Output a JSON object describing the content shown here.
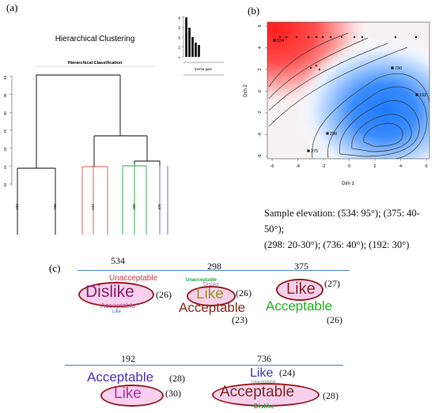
{
  "panel_a": {
    "label": "(a)",
    "title": "Hierarchical Clustering",
    "subtitle": "Hierarchical Classification",
    "inertia_label": "inertia gain",
    "y_ticks": [
      "10",
      "15",
      "20",
      "25",
      "30",
      "35",
      "40"
    ],
    "inertia_ticks": [
      "0",
      "10",
      "20",
      "30",
      "40"
    ],
    "leaves": [
      "192",
      "736",
      "534",
      "298",
      "375"
    ],
    "colors": {
      "black": "#000000",
      "red": "#e05050",
      "green": "#2aa84a",
      "blue": "#6a5acd"
    }
  },
  "panel_b": {
    "label": "(b)",
    "xlabel": "Dim 1",
    "ylabel": "Dim 2",
    "x_ticks": [
      "-6",
      "-4",
      "-2",
      "0",
      "2",
      "4",
      "6"
    ],
    "y_ticks": [
      "6",
      "4",
      "2",
      "0",
      "-2",
      "-4",
      "-6"
    ],
    "points": [
      "534",
      "736",
      "192",
      "298",
      "375"
    ],
    "colors": {
      "hot": "#ff2a2a",
      "cold": "#1e7bff"
    }
  },
  "caption_b": {
    "line1": "Sample elevation: (534: 95°); (375: 40-50°);",
    "line2": "(298: 20-30°); (736: 40°); (192: 30°)"
  },
  "panel_c": {
    "label": "(c)",
    "groups": [
      {
        "id": "534",
        "words": [
          {
            "text": "Unacceptable",
            "color": "#d0344a"
          },
          {
            "text": "Dislike",
            "color": "#8a1f6a",
            "count": "(26)"
          },
          {
            "text": "Acceptable",
            "color": "#b54a9a"
          },
          {
            "text": "Like",
            "color": "#4a5de0"
          }
        ]
      },
      {
        "id": "298",
        "words": [
          {
            "text": "Unacceptable",
            "color": "#2aa84a"
          },
          {
            "text": "Dislike",
            "color": "#9b7bd0"
          },
          {
            "text": "Like",
            "color": "#9a9a20",
            "count": "(26)"
          },
          {
            "text": "Acceptable",
            "color": "#8a2a1a",
            "count": "(23)"
          }
        ]
      },
      {
        "id": "375",
        "words": [
          {
            "text": "Unacceptable",
            "color": "#c05050"
          },
          {
            "text": "Like",
            "color": "#8a2a2a",
            "count": "(27)"
          },
          {
            "text": "Acceptable",
            "color": "#22b022",
            "count": "(26)"
          }
        ]
      },
      {
        "id": "192",
        "words": [
          {
            "text": "Acceptable",
            "color": "#5030c8",
            "count": "(28)"
          },
          {
            "text": "Like",
            "color": "#b030b0",
            "count": "(30)"
          }
        ]
      },
      {
        "id": "736",
        "words": [
          {
            "text": "Like",
            "color": "#3040c0",
            "count": "(24)"
          },
          {
            "text": "Unacceptable",
            "color": "#7a7a7a"
          },
          {
            "text": "Acceptable",
            "color": "#7a2a1a",
            "count": "(28)"
          },
          {
            "text": "Dislike",
            "color": "#2aa84a"
          }
        ]
      }
    ]
  }
}
